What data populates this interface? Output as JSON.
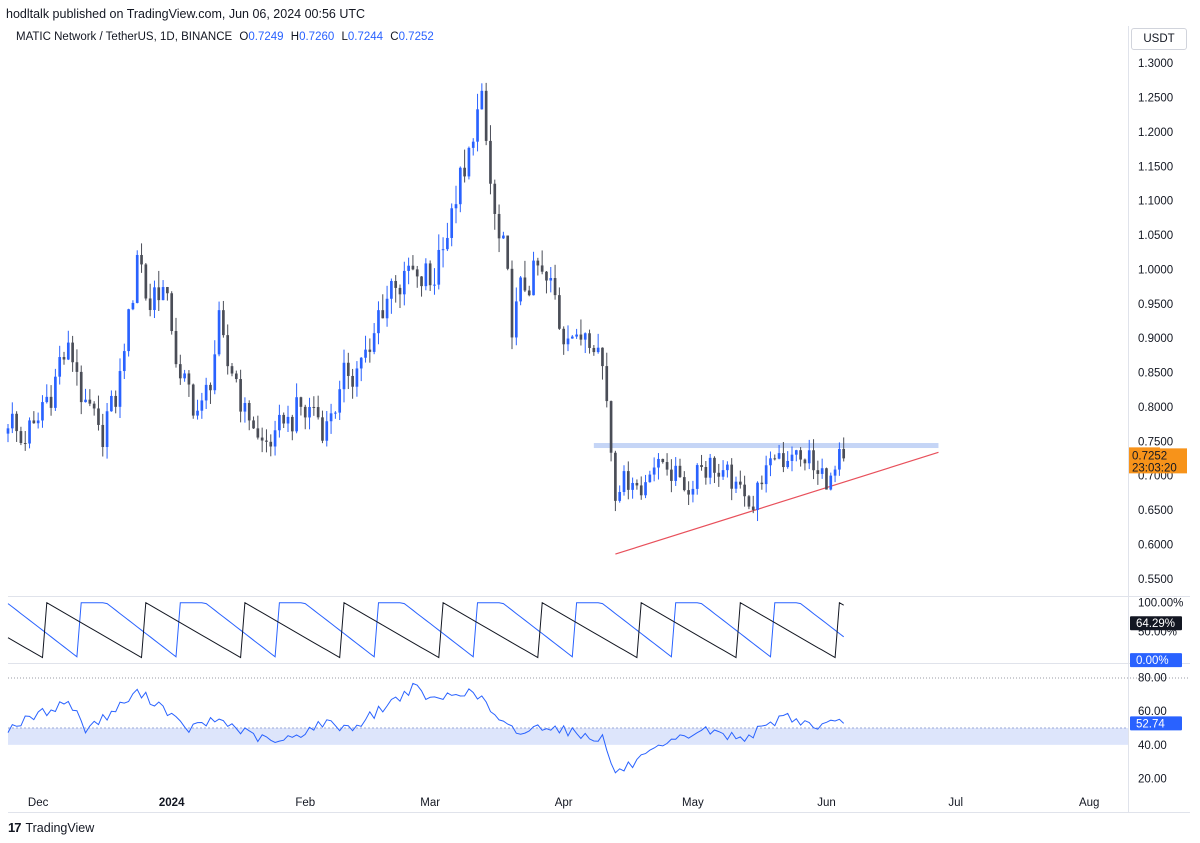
{
  "header": {
    "published_by": "hodltalk published on TradingView.com, Jun 06, 2024 00:56 UTC",
    "symbol": "MATIC Network / TetherUS, 1D, BINANCE",
    "ohlc": [
      {
        "label": "O",
        "value": "0.7249"
      },
      {
        "label": "H",
        "value": "0.7260"
      },
      {
        "label": "L",
        "value": "0.7244"
      },
      {
        "label": "C",
        "value": "0.7252"
      }
    ],
    "currency": "USDT"
  },
  "footer": {
    "brand": "TradingView",
    "brand_mark": "17"
  },
  "colors": {
    "up": "#2962ff",
    "down": "#4a4d57",
    "support_line": "#e8505b",
    "resistance_zone": "#bfd0f5",
    "stoch_k": "#2962ff",
    "stoch_d": "#131722",
    "rsi_line": "#2962ff",
    "rsi_band": "#dde5fb",
    "price_badge": "#f7931a"
  },
  "chart_data": [
    {
      "type": "candlestick",
      "title": "MATIC Network / TetherUS, 1D, BINANCE",
      "x_range": [
        "2023-11-24",
        "2024-08-10"
      ],
      "x_ticks": [
        {
          "date": "2023-12-01",
          "label": "Dec"
        },
        {
          "date": "2024-01-01",
          "label": "2024"
        },
        {
          "date": "2024-02-01",
          "label": "Feb"
        },
        {
          "date": "2024-03-01",
          "label": "Mar"
        },
        {
          "date": "2024-04-01",
          "label": "Apr"
        },
        {
          "date": "2024-05-01",
          "label": "May"
        },
        {
          "date": "2024-06-01",
          "label": "Jun"
        },
        {
          "date": "2024-07-01",
          "label": "Jul"
        },
        {
          "date": "2024-08-01",
          "label": "Aug"
        }
      ],
      "ylim": [
        0.525,
        1.325
      ],
      "y_ticks": [
        "0.5500",
        "0.6000",
        "0.6500",
        "0.7000",
        "0.7500",
        "0.8000",
        "0.8500",
        "0.9000",
        "0.9500",
        "1.0000",
        "1.0500",
        "1.1000",
        "1.1500",
        "1.2000",
        "1.2500",
        "1.3000"
      ],
      "last_price": "0.7252",
      "countdown": "23:03:20",
      "close_anchors": [
        [
          "2023-11-24",
          0.78
        ],
        [
          "2023-11-28",
          0.75
        ],
        [
          "2023-12-03",
          0.81
        ],
        [
          "2023-12-08",
          0.89
        ],
        [
          "2023-12-12",
          0.8
        ],
        [
          "2023-12-16",
          0.76
        ],
        [
          "2023-12-20",
          0.84
        ],
        [
          "2023-12-24",
          1.02
        ],
        [
          "2023-12-27",
          0.95
        ],
        [
          "2023-12-30",
          0.98
        ],
        [
          "2024-01-03",
          0.84
        ],
        [
          "2024-01-08",
          0.79
        ],
        [
          "2024-01-12",
          0.91
        ],
        [
          "2024-01-15",
          0.85
        ],
        [
          "2024-01-19",
          0.78
        ],
        [
          "2024-01-23",
          0.74
        ],
        [
          "2024-01-27",
          0.78
        ],
        [
          "2024-02-02",
          0.8
        ],
        [
          "2024-02-06",
          0.77
        ],
        [
          "2024-02-10",
          0.84
        ],
        [
          "2024-02-16",
          0.88
        ],
        [
          "2024-02-20",
          0.97
        ],
        [
          "2024-02-25",
          0.99
        ],
        [
          "2024-03-01",
          0.98
        ],
        [
          "2024-03-06",
          1.08
        ],
        [
          "2024-03-09",
          1.14
        ],
        [
          "2024-03-13",
          1.25
        ],
        [
          "2024-03-15",
          1.11
        ],
        [
          "2024-03-18",
          1.02
        ],
        [
          "2024-03-20",
          0.93
        ],
        [
          "2024-03-24",
          0.99
        ],
        [
          "2024-03-28",
          0.99
        ],
        [
          "2024-04-01",
          0.91
        ],
        [
          "2024-04-04",
          0.9
        ],
        [
          "2024-04-08",
          0.91
        ],
        [
          "2024-04-11",
          0.82
        ],
        [
          "2024-04-13",
          0.67
        ],
        [
          "2024-04-15",
          0.7
        ],
        [
          "2024-04-19",
          0.68
        ],
        [
          "2024-04-22",
          0.72
        ],
        [
          "2024-04-26",
          0.71
        ],
        [
          "2024-04-30",
          0.68
        ],
        [
          "2024-05-03",
          0.72
        ],
        [
          "2024-05-08",
          0.7
        ],
        [
          "2024-05-12",
          0.68
        ],
        [
          "2024-05-15",
          0.66
        ],
        [
          "2024-05-18",
          0.71
        ],
        [
          "2024-05-21",
          0.73
        ],
        [
          "2024-05-25",
          0.73
        ],
        [
          "2024-05-28",
          0.72
        ],
        [
          "2024-06-01",
          0.69
        ],
        [
          "2024-06-05",
          0.7252
        ]
      ],
      "resistance_zone": {
        "from": "2024-04-08",
        "to": "2024-06-27",
        "low": 0.7425,
        "high": 0.7475
      },
      "support_trendline": {
        "start": [
          "2024-04-13",
          0.586
        ],
        "end": [
          "2024-06-27",
          0.734
        ]
      }
    },
    {
      "type": "line",
      "name": "Stochastic oscillator",
      "ylim": [
        -5,
        110
      ],
      "y_ticks": [
        "100.00%",
        "50.00%"
      ],
      "series": [
        {
          "name": "K",
          "last": "0.00%",
          "anchors": [
            [
              "2023-11-24",
              30
            ],
            [
              "2024-06-05",
              0
            ]
          ]
        },
        {
          "name": "D",
          "last": "64.29%",
          "anchors": [
            [
              "2023-11-24",
              60
            ],
            [
              "2024-06-05",
              64.29
            ]
          ]
        }
      ]
    },
    {
      "type": "line",
      "name": "RSI",
      "ylim": [
        12,
        88
      ],
      "y_ticks": [
        "80.00",
        "60.00",
        "40.00",
        "20.00"
      ],
      "band": [
        40,
        50
      ],
      "last": "52.74",
      "anchors": [
        [
          "2023-11-24",
          50
        ],
        [
          "2023-12-03",
          60
        ],
        [
          "2023-12-08",
          66
        ],
        [
          "2023-12-12",
          50
        ],
        [
          "2023-12-17",
          57
        ],
        [
          "2023-12-24",
          71
        ],
        [
          "2023-12-30",
          63
        ],
        [
          "2024-01-04",
          49
        ],
        [
          "2024-01-12",
          55
        ],
        [
          "2024-01-20",
          45
        ],
        [
          "2024-01-26",
          41
        ],
        [
          "2024-02-05",
          53
        ],
        [
          "2024-02-12",
          50
        ],
        [
          "2024-02-19",
          62
        ],
        [
          "2024-02-26",
          74
        ],
        [
          "2024-03-02",
          66
        ],
        [
          "2024-03-08",
          72
        ],
        [
          "2024-03-13",
          68
        ],
        [
          "2024-03-17",
          53
        ],
        [
          "2024-03-22",
          47
        ],
        [
          "2024-03-28",
          52
        ],
        [
          "2024-04-05",
          46
        ],
        [
          "2024-04-10",
          44
        ],
        [
          "2024-04-13",
          23
        ],
        [
          "2024-04-18",
          30
        ],
        [
          "2024-04-26",
          41
        ],
        [
          "2024-05-03",
          49
        ],
        [
          "2024-05-12",
          44
        ],
        [
          "2024-05-18",
          50
        ],
        [
          "2024-05-22",
          58
        ],
        [
          "2024-05-29",
          51
        ],
        [
          "2024-06-05",
          52.74
        ]
      ]
    }
  ]
}
